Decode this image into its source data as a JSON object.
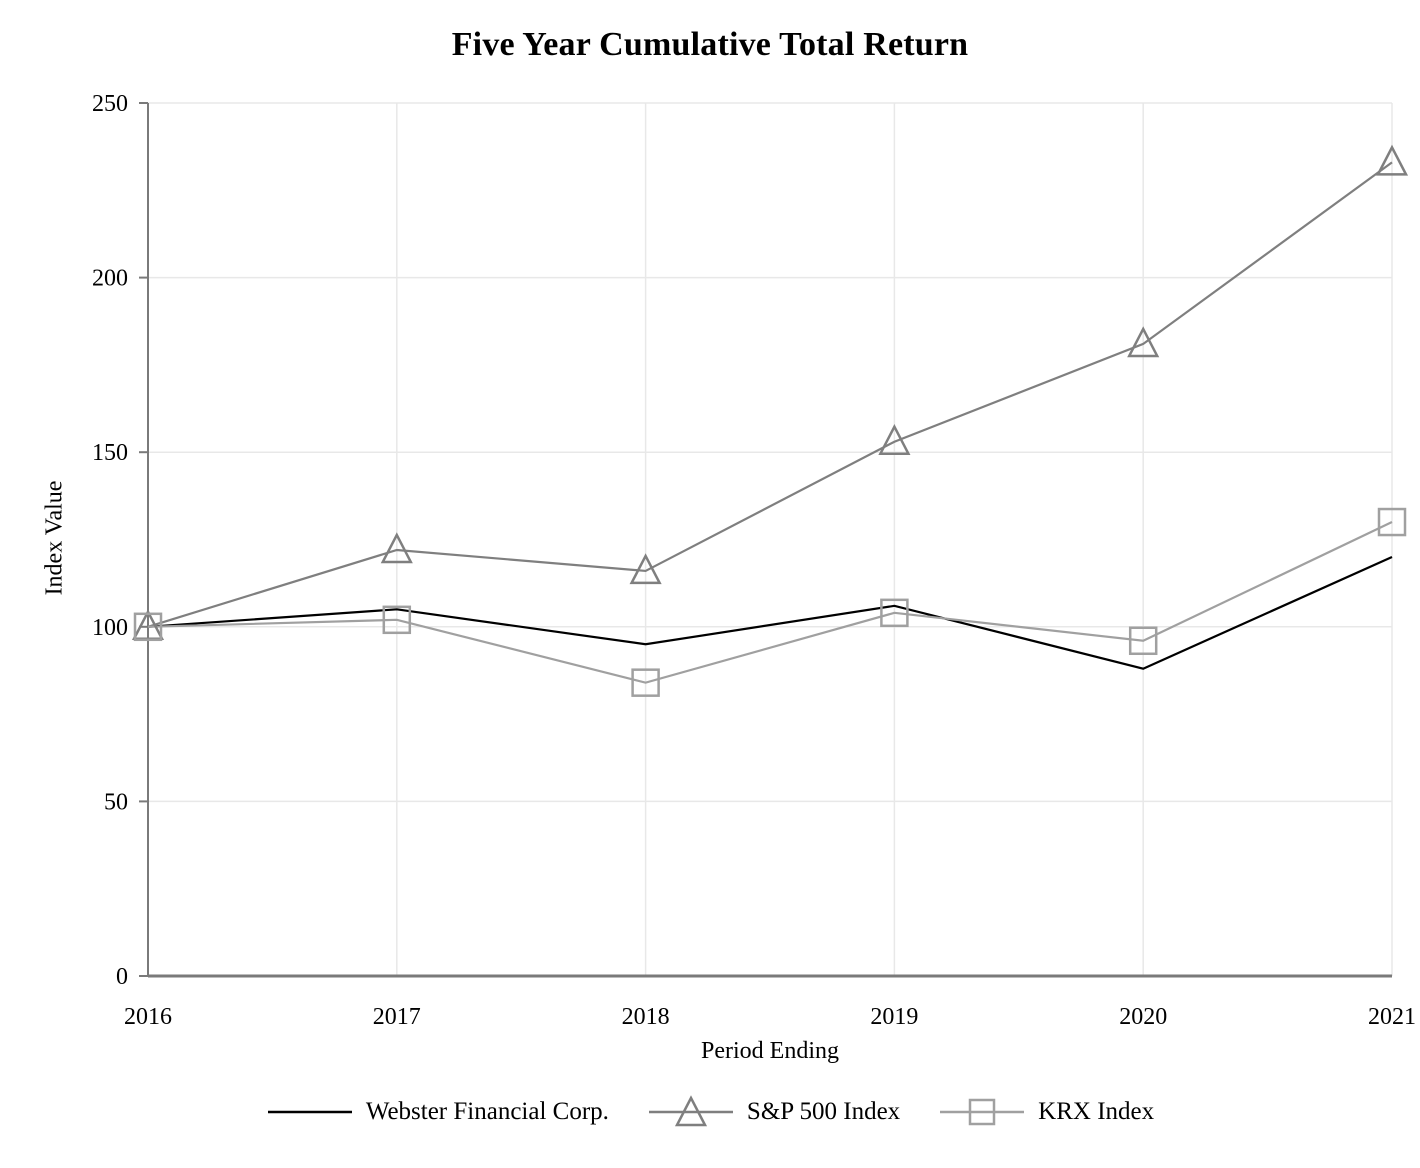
{
  "title": "Five Year Cumulative Total Return",
  "chart_data": {
    "type": "line",
    "categories": [
      "2016",
      "2017",
      "2018",
      "2019",
      "2020",
      "2021"
    ],
    "series": [
      {
        "name": "Webster Financial Corp.",
        "values": [
          100,
          105,
          95,
          106,
          88,
          120
        ],
        "color": "#000000",
        "marker": "none"
      },
      {
        "name": "S&P 500 Index",
        "values": [
          100,
          122,
          116,
          153,
          181,
          233
        ],
        "color": "#7f7f7f",
        "marker": "triangle"
      },
      {
        "name": "KRX Index",
        "values": [
          100,
          102,
          84,
          104,
          96,
          130
        ],
        "color": "#a0a0a0",
        "marker": "square"
      }
    ],
    "xlabel": "Period Ending",
    "ylabel": "Index Value",
    "ylim": [
      0,
      250
    ],
    "y_ticks": [
      0,
      50,
      100,
      150,
      200,
      250
    ],
    "grid": true,
    "legend_position": "bottom"
  },
  "colors": {
    "gridline": "#e8e8e8",
    "axis_spine": "#7a7a7a",
    "text": "#000000"
  }
}
